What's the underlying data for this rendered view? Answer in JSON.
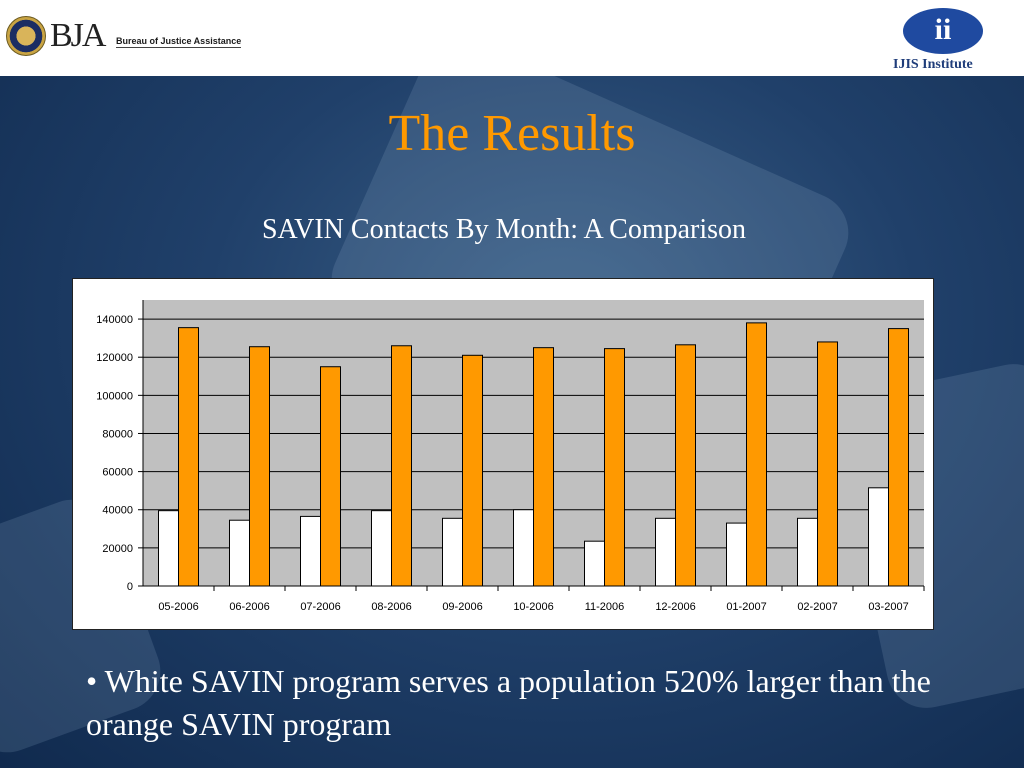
{
  "header": {
    "bja_logo_text": "BJA",
    "bja_name": "Bureau of Justice Assistance",
    "ijis_logo_text": "ii",
    "ijis_name": "IJIS Institute"
  },
  "slide": {
    "title": "The Results",
    "subtitle": "SAVIN Contacts By Month:  A Comparison",
    "bullet": "• White SAVIN program serves a population 520% larger than the orange SAVIN program"
  },
  "colors": {
    "title": "#ff9900",
    "orange_series": "#ff9900",
    "white_series": "#ffffff",
    "plot_bg": "#c0c0c0"
  },
  "chart_data": {
    "type": "bar",
    "categories": [
      "05-2006",
      "06-2006",
      "07-2006",
      "08-2006",
      "09-2006",
      "10-2006",
      "11-2006",
      "12-2006",
      "01-2007",
      "02-2007",
      "03-2007"
    ],
    "series": [
      {
        "values": [
          39500,
          34500,
          36500,
          39500,
          35500,
          40000,
          23500,
          35500,
          33000,
          35500,
          51500
        ],
        "color": "#ffffff"
      },
      {
        "values": [
          135500,
          125500,
          115000,
          126000,
          121000,
          125000,
          124500,
          126500,
          138000,
          128000,
          135000
        ],
        "color": "#ff9900"
      }
    ],
    "yticks": [
      0,
      20000,
      40000,
      60000,
      80000,
      100000,
      120000,
      140000
    ],
    "ylim": [
      0,
      150000
    ],
    "grid": true,
    "legend": "none"
  }
}
